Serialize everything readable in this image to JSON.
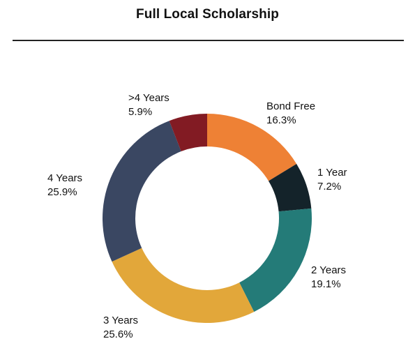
{
  "chart_data": {
    "type": "pie",
    "donut": true,
    "title": "Full Local Scholarship",
    "slices": [
      {
        "label": "Bond Free",
        "value": 16.3,
        "value_label": "16.3%",
        "color": "#ee8135"
      },
      {
        "label": "1 Year",
        "value": 7.2,
        "value_label": "7.2%",
        "color": "#14232a"
      },
      {
        "label": "2 Years",
        "value": 19.1,
        "value_label": "19.1%",
        "color": "#247b78"
      },
      {
        "label": "3 Years",
        "value": 25.6,
        "value_label": "25.6%",
        "color": "#e2a73a"
      },
      {
        "label": "4 Years",
        "value": 25.9,
        "value_label": "25.9%",
        "color": "#3a4762"
      },
      {
        "label": ">4 Years",
        "value": 5.9,
        "value_label": "5.9%",
        "color": "#821b23"
      }
    ]
  }
}
